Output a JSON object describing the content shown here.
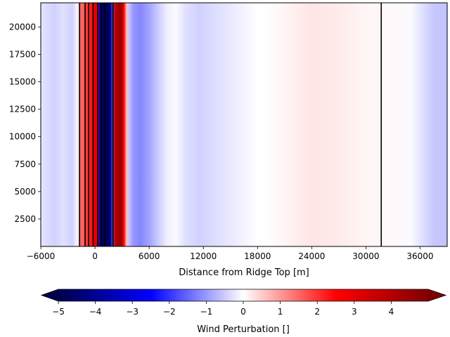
{
  "chart_data": {
    "type": "heatmap",
    "title": "",
    "xlabel": "Distance from Ridge Top [m]",
    "ylabel": "",
    "xlim": [
      -6000,
      39000
    ],
    "ylim": [
      0,
      22200
    ],
    "x_ticks": [
      -6000,
      0,
      6000,
      12000,
      18000,
      24000,
      30000,
      36000
    ],
    "x_tick_labels": [
      "−6000",
      "0",
      "6000",
      "12000",
      "18000",
      "24000",
      "30000",
      "36000"
    ],
    "y_ticks": [
      2500,
      5000,
      7500,
      10000,
      12500,
      15000,
      17500,
      20000
    ],
    "y_tick_labels": [
      "2500",
      "5000",
      "7500",
      "10000",
      "12500",
      "15000",
      "17500",
      "20000"
    ],
    "field_profile": {
      "description_of_axis": "perturbation value vs distance, uniform in height",
      "x": [
        -6000,
        -4500,
        -3500,
        -2500,
        -2000,
        -1800,
        -1700,
        -1500,
        -1100,
        -1000,
        -700,
        -200,
        0,
        150,
        300,
        500,
        700,
        900,
        1100,
        1400,
        1700,
        2000,
        2200,
        2500,
        2800,
        3000,
        3200,
        3500,
        3800,
        4200,
        5000,
        6000,
        7000,
        8000,
        9000,
        10000,
        11500,
        13000,
        14500,
        16000,
        18000,
        20000,
        24000,
        27000,
        30000,
        33000,
        35000,
        36500,
        37500,
        39000
      ],
      "values": [
        -0.25,
        -0.45,
        -0.3,
        -0.45,
        -0.1,
        0.4,
        1.3,
        1.5,
        1.6,
        1.9,
        2.0,
        2.6,
        2.9,
        3.3,
        2.7,
        -3.2,
        -4.5,
        -4.9,
        -4.8,
        -4.7,
        -4.4,
        -1.6,
        3.6,
        4.3,
        4.5,
        4.0,
        2.5,
        0.6,
        -0.6,
        -1.0,
        -1.2,
        -0.9,
        -0.5,
        -0.15,
        -0.05,
        -0.3,
        -0.45,
        -0.35,
        -0.25,
        -0.15,
        0.0,
        0.05,
        0.25,
        0.2,
        0.1,
        0.05,
        -0.05,
        -0.35,
        -0.55,
        -0.6
      ]
    },
    "vertical_lines_x": [
      -1700,
      -1100,
      -700,
      -200,
      300,
      700,
      1100,
      2000,
      31700
    ],
    "colorbar": {
      "label": "Wind Perturbation []",
      "vmin": -5,
      "vmax": 5,
      "ticks": [
        -5,
        -4,
        -3,
        -2,
        -1,
        0,
        1,
        2,
        3,
        4
      ],
      "tick_labels": [
        "−5",
        "−4",
        "−3",
        "−2",
        "−1",
        "0",
        "1",
        "2",
        "3",
        "4"
      ],
      "cmap": "seismic",
      "extend": "both"
    },
    "colors": {
      "cmap_stops": [
        "#00004c",
        "#0000ff",
        "#ffffff",
        "#ff0000",
        "#800000"
      ]
    }
  }
}
